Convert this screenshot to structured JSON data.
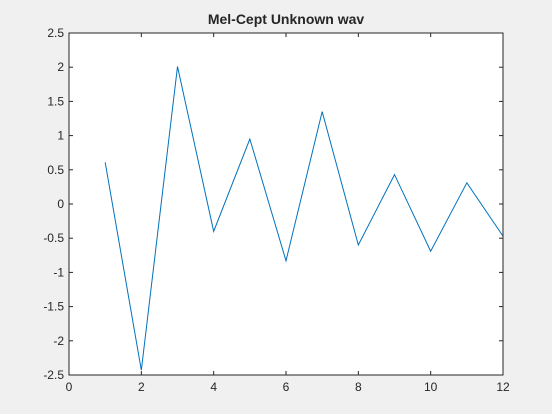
{
  "chart_data": {
    "type": "line",
    "title": "Mel-Cept Unknown wav",
    "xlabel": "",
    "ylabel": "",
    "xlim": [
      0,
      12
    ],
    "ylim": [
      -2.5,
      2.5
    ],
    "xticks": [
      0,
      2,
      4,
      6,
      8,
      10,
      12
    ],
    "xtick_labels": [
      "0",
      "2",
      "4",
      "6",
      "8",
      "10",
      "12"
    ],
    "yticks": [
      2.5,
      2,
      1.5,
      1,
      0.5,
      0,
      -0.5,
      -1,
      -1.5,
      -2,
      -2.5
    ],
    "ytick_labels": [
      "2.5",
      "2",
      "1.5",
      "1",
      "0.5",
      "0",
      "-0.5",
      "-1",
      "-1.5",
      "-2",
      "-2.5"
    ],
    "grid": false,
    "legend": "none",
    "series": [
      {
        "x": [
          1,
          2,
          3,
          4,
          5,
          6,
          7,
          8,
          9,
          10,
          11,
          12
        ],
        "values": [
          0.61,
          -2.43,
          2.01,
          -0.4,
          0.95,
          -0.83,
          1.35,
          -0.6,
          0.43,
          -0.69,
          0.31,
          -0.47
        ],
        "color": "#0072bd"
      }
    ],
    "colors": {
      "background": "#f0f0f0",
      "axes": "#ffffff",
      "axis_line": "#262626"
    }
  }
}
